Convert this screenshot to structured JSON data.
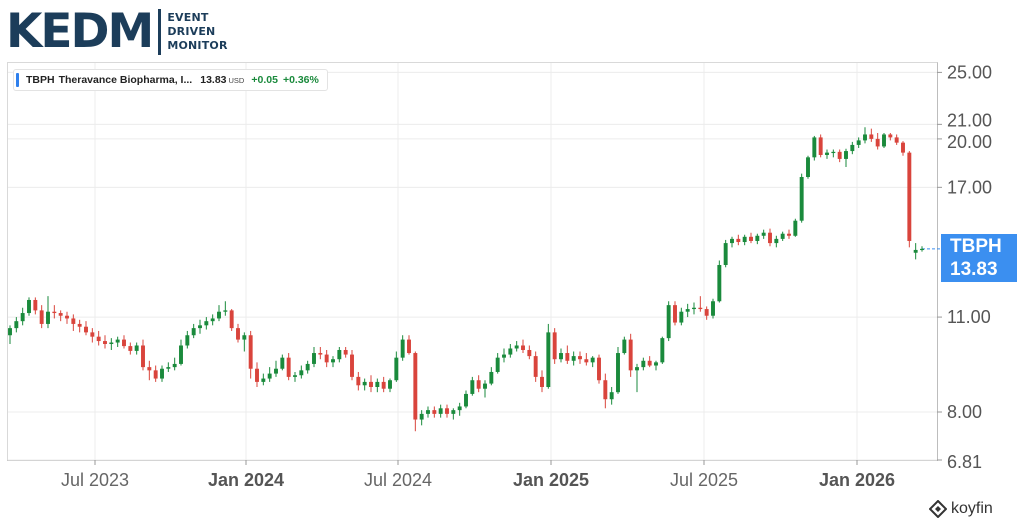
{
  "logo": {
    "main": "KEDM",
    "sub": [
      "EVENT",
      "DRIVEN",
      "MONITOR"
    ]
  },
  "ticker": {
    "symbol": "TBPH",
    "name": "Theravance Biopharma, I...",
    "price": "13.83",
    "currency": "USD",
    "change": "+0.05",
    "change_pct": "+0.36%"
  },
  "price_tag": {
    "symbol": "TBPH",
    "price": "13.83"
  },
  "watermark": "koyfin",
  "colors": {
    "up": "#1a8a3c",
    "down": "#d9443c",
    "tag": "#3b8ff0",
    "grid": "#ececec"
  },
  "chart_data": {
    "type": "candlestick",
    "y_scale": "log",
    "ylim": [
      6.81,
      25.8
    ],
    "y_ticks": [
      "25.00",
      "21.00",
      "20.00",
      "17.00",
      "11.00",
      "8.00",
      "6.81"
    ],
    "x_ticks": [
      {
        "label": "Jul 2023",
        "bold": false
      },
      {
        "label": "Jan 2024",
        "bold": true
      },
      {
        "label": "Jul 2024",
        "bold": false
      },
      {
        "label": "Jan 2025",
        "bold": true
      },
      {
        "label": "Jul 2025",
        "bold": false
      },
      {
        "label": "Jan 2026",
        "bold": true
      }
    ],
    "frequency": "weekly",
    "grid": true,
    "last_price": 13.83,
    "candles": [
      [
        10.35,
        10.7,
        10.05,
        10.6
      ],
      [
        10.6,
        11.0,
        10.45,
        10.85
      ],
      [
        10.85,
        11.35,
        10.7,
        11.15
      ],
      [
        11.15,
        11.75,
        11.05,
        11.65
      ],
      [
        11.65,
        11.75,
        11.1,
        11.25
      ],
      [
        11.25,
        11.45,
        10.6,
        10.75
      ],
      [
        10.75,
        11.8,
        10.6,
        11.2
      ],
      [
        11.2,
        11.45,
        10.95,
        11.15
      ],
      [
        11.15,
        11.25,
        10.85,
        11.05
      ],
      [
        11.05,
        11.2,
        10.75,
        10.95
      ],
      [
        10.95,
        11.1,
        10.5,
        10.75
      ],
      [
        10.75,
        10.9,
        10.45,
        10.65
      ],
      [
        10.65,
        10.85,
        10.35,
        10.45
      ],
      [
        10.45,
        10.6,
        10.1,
        10.3
      ],
      [
        10.3,
        10.5,
        10.0,
        10.15
      ],
      [
        10.15,
        10.35,
        9.9,
        10.05
      ],
      [
        10.05,
        10.25,
        9.85,
        10.1
      ],
      [
        10.1,
        10.3,
        9.95,
        10.2
      ],
      [
        10.2,
        10.35,
        9.9,
        9.98
      ],
      [
        9.98,
        10.1,
        9.7,
        9.82
      ],
      [
        9.82,
        10.1,
        9.7,
        10.0
      ],
      [
        10.0,
        10.2,
        9.2,
        9.3
      ],
      [
        9.3,
        9.5,
        8.9,
        9.2
      ],
      [
        9.2,
        9.35,
        8.85,
        8.95
      ],
      [
        8.95,
        9.35,
        8.85,
        9.25
      ],
      [
        9.25,
        9.45,
        9.15,
        9.3
      ],
      [
        9.3,
        9.6,
        9.2,
        9.4
      ],
      [
        9.4,
        10.2,
        9.35,
        10.0
      ],
      [
        10.0,
        10.5,
        9.9,
        10.35
      ],
      [
        10.35,
        10.75,
        10.25,
        10.6
      ],
      [
        10.6,
        10.9,
        10.4,
        10.7
      ],
      [
        10.7,
        11.0,
        10.55,
        10.85
      ],
      [
        10.85,
        11.1,
        10.7,
        10.95
      ],
      [
        10.95,
        11.45,
        10.85,
        11.2
      ],
      [
        11.2,
        11.6,
        11.05,
        11.25
      ],
      [
        11.25,
        11.3,
        10.5,
        10.6
      ],
      [
        10.6,
        10.75,
        10.1,
        10.2
      ],
      [
        10.2,
        10.45,
        9.8,
        10.35
      ],
      [
        10.35,
        10.5,
        8.95,
        9.25
      ],
      [
        9.25,
        9.45,
        8.7,
        8.85
      ],
      [
        8.85,
        9.1,
        8.75,
        8.95
      ],
      [
        8.95,
        9.3,
        8.85,
        9.1
      ],
      [
        9.1,
        9.5,
        9.0,
        9.25
      ],
      [
        9.25,
        9.7,
        9.2,
        9.6
      ],
      [
        9.6,
        9.75,
        8.9,
        9.0
      ],
      [
        9.0,
        9.15,
        8.85,
        9.05
      ],
      [
        9.05,
        9.35,
        8.95,
        9.2
      ],
      [
        9.2,
        9.5,
        9.1,
        9.4
      ],
      [
        9.4,
        9.95,
        9.3,
        9.75
      ],
      [
        9.75,
        9.95,
        9.55,
        9.7
      ],
      [
        9.7,
        9.85,
        9.3,
        9.45
      ],
      [
        9.45,
        9.65,
        9.3,
        9.55
      ],
      [
        9.55,
        9.95,
        9.45,
        9.85
      ],
      [
        9.85,
        9.95,
        9.6,
        9.7
      ],
      [
        9.7,
        9.85,
        8.9,
        9.0
      ],
      [
        9.0,
        9.15,
        8.6,
        8.75
      ],
      [
        8.75,
        8.95,
        8.6,
        8.85
      ],
      [
        8.85,
        9.05,
        8.55,
        8.7
      ],
      [
        8.7,
        8.95,
        8.55,
        8.85
      ],
      [
        8.85,
        9.0,
        8.55,
        8.65
      ],
      [
        8.65,
        8.95,
        8.55,
        8.9
      ],
      [
        8.9,
        9.8,
        8.85,
        9.6
      ],
      [
        9.6,
        10.35,
        9.5,
        10.2
      ],
      [
        10.2,
        10.35,
        9.7,
        9.75
      ],
      [
        9.75,
        9.8,
        7.5,
        7.8
      ],
      [
        7.8,
        8.05,
        7.65,
        7.95
      ],
      [
        7.95,
        8.15,
        7.85,
        8.05
      ],
      [
        8.05,
        8.15,
        7.85,
        7.95
      ],
      [
        7.95,
        8.2,
        7.85,
        8.1
      ],
      [
        8.1,
        8.2,
        7.85,
        7.95
      ],
      [
        7.95,
        8.1,
        7.8,
        8.05
      ],
      [
        8.05,
        8.25,
        7.9,
        8.15
      ],
      [
        8.15,
        8.6,
        8.1,
        8.5
      ],
      [
        8.5,
        9.0,
        8.45,
        8.9
      ],
      [
        8.9,
        9.05,
        8.55,
        8.65
      ],
      [
        8.65,
        8.9,
        8.4,
        8.8
      ],
      [
        8.8,
        9.3,
        8.75,
        9.15
      ],
      [
        9.15,
        9.75,
        9.1,
        9.6
      ],
      [
        9.6,
        9.9,
        9.45,
        9.7
      ],
      [
        9.7,
        10.05,
        9.6,
        9.9
      ],
      [
        9.9,
        10.15,
        9.8,
        10.0
      ],
      [
        10.0,
        10.2,
        9.75,
        9.85
      ],
      [
        9.85,
        10.0,
        9.55,
        9.65
      ],
      [
        9.65,
        9.8,
        8.85,
        9.0
      ],
      [
        9.0,
        9.2,
        8.55,
        8.7
      ],
      [
        8.7,
        10.75,
        8.65,
        10.45
      ],
      [
        10.45,
        10.6,
        9.4,
        9.55
      ],
      [
        9.55,
        9.9,
        9.45,
        9.75
      ],
      [
        9.75,
        10.0,
        9.4,
        9.5
      ],
      [
        9.5,
        9.8,
        9.35,
        9.65
      ],
      [
        9.65,
        9.8,
        9.4,
        9.55
      ],
      [
        9.55,
        9.75,
        9.35,
        9.45
      ],
      [
        9.45,
        9.65,
        9.3,
        9.6
      ],
      [
        9.6,
        9.7,
        8.8,
        8.9
      ],
      [
        8.9,
        9.1,
        8.1,
        8.35
      ],
      [
        8.35,
        8.7,
        8.2,
        8.55
      ],
      [
        8.55,
        9.95,
        8.5,
        9.75
      ],
      [
        9.75,
        10.3,
        9.7,
        10.2
      ],
      [
        10.2,
        10.4,
        9.0,
        9.2
      ],
      [
        9.2,
        9.4,
        8.55,
        9.3
      ],
      [
        9.3,
        9.6,
        9.2,
        9.5
      ],
      [
        9.5,
        9.65,
        9.3,
        9.35
      ],
      [
        9.35,
        9.5,
        9.2,
        9.45
      ],
      [
        9.45,
        10.3,
        9.4,
        10.25
      ],
      [
        10.25,
        11.6,
        10.15,
        11.45
      ],
      [
        11.45,
        11.6,
        10.7,
        10.8
      ],
      [
        10.8,
        11.35,
        10.7,
        11.2
      ],
      [
        11.2,
        11.5,
        11.0,
        11.3
      ],
      [
        11.3,
        11.55,
        11.1,
        11.35
      ],
      [
        11.35,
        11.8,
        11.2,
        11.3
      ],
      [
        11.3,
        11.4,
        10.9,
        11.05
      ],
      [
        11.05,
        11.7,
        10.95,
        11.6
      ],
      [
        11.6,
        13.3,
        11.55,
        13.1
      ],
      [
        13.1,
        14.25,
        13.0,
        14.1
      ],
      [
        14.1,
        14.4,
        13.9,
        14.3
      ],
      [
        14.3,
        14.5,
        14.0,
        14.15
      ],
      [
        14.15,
        14.5,
        14.0,
        14.4
      ],
      [
        14.4,
        14.6,
        14.1,
        14.2
      ],
      [
        14.2,
        14.55,
        14.05,
        14.45
      ],
      [
        14.45,
        14.75,
        14.3,
        14.6
      ],
      [
        14.6,
        14.8,
        13.95,
        14.1
      ],
      [
        14.1,
        14.45,
        13.9,
        14.3
      ],
      [
        14.3,
        14.65,
        14.2,
        14.55
      ],
      [
        14.55,
        14.75,
        14.3,
        14.45
      ],
      [
        14.45,
        15.3,
        14.4,
        15.2
      ],
      [
        15.2,
        17.8,
        15.1,
        17.6
      ],
      [
        17.6,
        18.9,
        17.5,
        18.8
      ],
      [
        18.8,
        20.2,
        18.6,
        20.1
      ],
      [
        20.1,
        20.3,
        18.8,
        18.95
      ],
      [
        18.95,
        19.3,
        18.7,
        19.1
      ],
      [
        19.1,
        19.3,
        18.8,
        19.15
      ],
      [
        19.15,
        19.3,
        18.5,
        18.7
      ],
      [
        18.7,
        19.35,
        18.2,
        19.2
      ],
      [
        19.2,
        19.8,
        19.0,
        19.6
      ],
      [
        19.6,
        20.1,
        19.4,
        19.9
      ],
      [
        19.9,
        20.8,
        19.7,
        20.3
      ],
      [
        20.3,
        20.7,
        19.8,
        20.0
      ],
      [
        20.0,
        20.4,
        19.3,
        19.5
      ],
      [
        19.5,
        20.4,
        19.4,
        20.3
      ],
      [
        20.3,
        20.4,
        19.9,
        20.1
      ],
      [
        20.1,
        20.3,
        19.6,
        19.75
      ],
      [
        19.75,
        19.85,
        18.9,
        19.1
      ],
      [
        19.1,
        19.2,
        13.9,
        14.2
      ],
      [
        13.65,
        14.1,
        13.35,
        13.78
      ],
      [
        13.78,
        13.95,
        13.7,
        13.83
      ]
    ]
  }
}
